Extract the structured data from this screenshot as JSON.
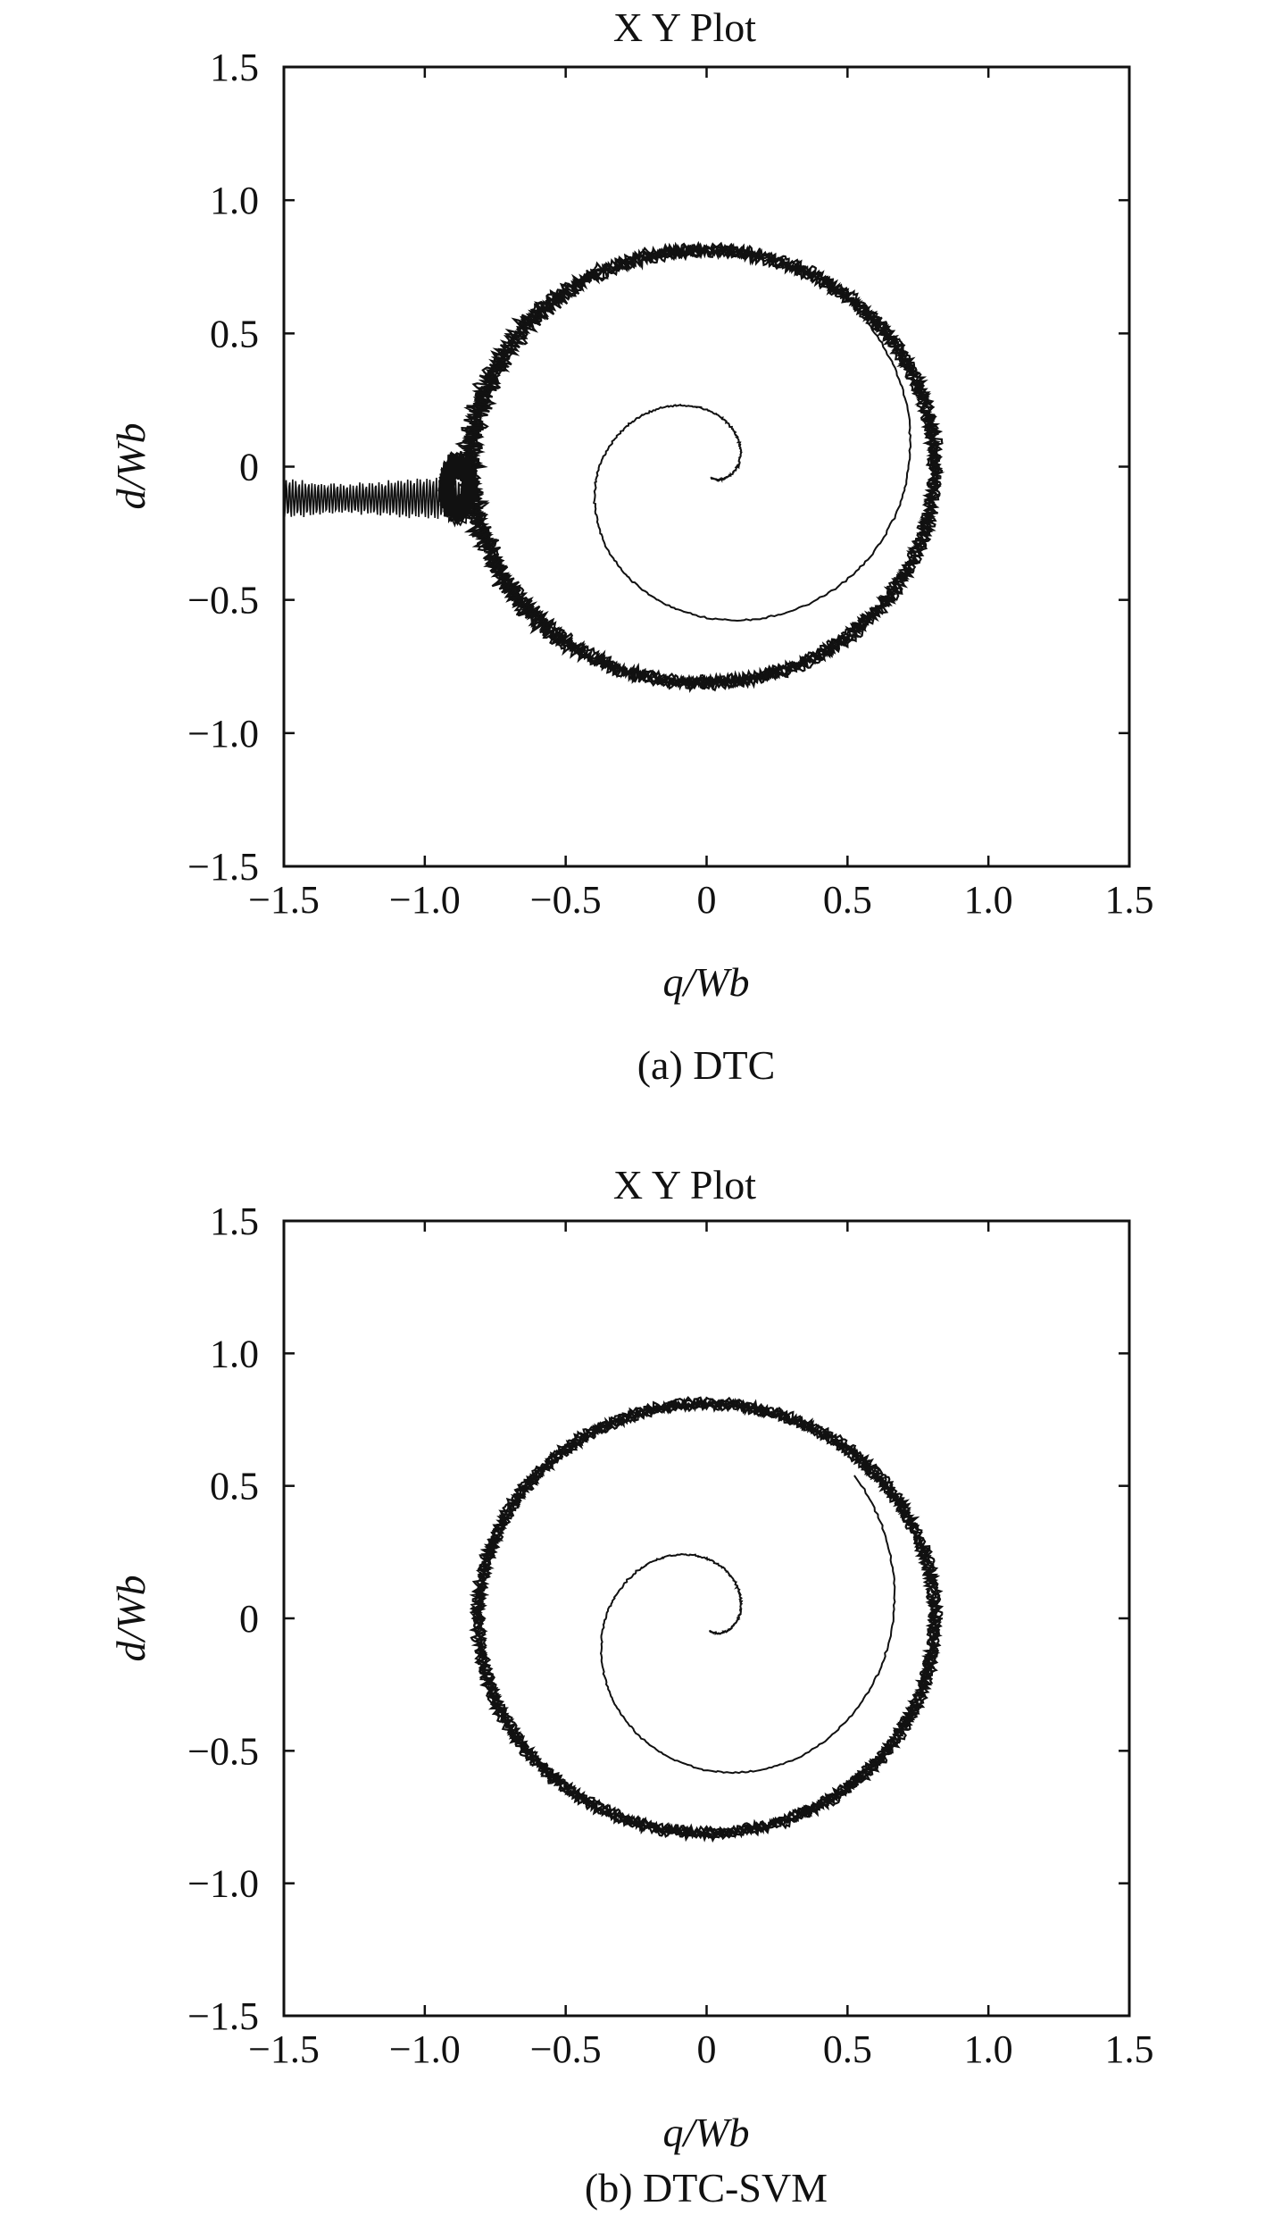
{
  "chart_data": [
    {
      "type": "scatter",
      "title": "X Y Plot",
      "xlabel": "q/Wb",
      "ylabel": "d/Wb",
      "caption": "(a) DTC",
      "xlim": [
        -1.5,
        1.5
      ],
      "ylim": [
        -1.5,
        1.5
      ],
      "xticks": [
        "−1.5",
        "−1.0",
        "−0.5",
        "0",
        "0.5",
        "1.0",
        "1.5"
      ],
      "yticks": [
        "1.5",
        "1.0",
        "0.5",
        "0",
        "−0.5",
        "−1.0",
        "−1.5"
      ],
      "grid": false,
      "line_color": "#111111",
      "series": [
        {
          "values": [
            {
              "x": 0.0,
              "y": 0.02
            },
            {
              "x": 0.02,
              "y": 0.07
            },
            {
              "x": -0.05,
              "y": 0.08
            },
            {
              "x": -0.12,
              "y": 0.05
            },
            {
              "x": -0.2,
              "y": -0.02
            },
            {
              "x": -0.28,
              "y": -0.15
            },
            {
              "x": -0.35,
              "y": -0.3
            },
            {
              "x": -0.38,
              "y": -0.45
            },
            {
              "x": -0.33,
              "y": -0.6
            },
            {
              "x": -0.22,
              "y": -0.72
            },
            {
              "x": -0.08,
              "y": -0.8
            },
            {
              "x": 0.05,
              "y": -0.8
            },
            {
              "x": 0.82,
              "y": 0.0
            },
            {
              "x": 0.0,
              "y": 0.82
            },
            {
              "x": -0.82,
              "y": 0.0
            },
            {
              "x": -0.95,
              "y": -0.1
            },
            {
              "x": -1.2,
              "y": -0.12
            },
            {
              "x": -1.5,
              "y": -0.15
            }
          ]
        }
      ]
    },
    {
      "type": "scatter",
      "title": "X Y Plot",
      "xlabel": "q/Wb",
      "ylabel": "d/Wb",
      "caption": "(b) DTC-SVM",
      "xlim": [
        -1.5,
        1.5
      ],
      "ylim": [
        -1.5,
        1.5
      ],
      "xticks": [
        "−1.5",
        "−1.0",
        "−0.5",
        "0",
        "0.5",
        "1.0",
        "1.5"
      ],
      "yticks": [
        "1.5",
        "1.0",
        "0.5",
        "0",
        "−0.5",
        "−1.0",
        "−1.5"
      ],
      "grid": false,
      "line_color": "#111111",
      "series": [
        {
          "values": [
            {
              "x": 0.02,
              "y": 0.02
            },
            {
              "x": 0.0,
              "y": 0.07
            },
            {
              "x": -0.08,
              "y": 0.07
            },
            {
              "x": -0.16,
              "y": 0.02
            },
            {
              "x": -0.25,
              "y": -0.1
            },
            {
              "x": -0.33,
              "y": -0.28
            },
            {
              "x": -0.34,
              "y": -0.45
            },
            {
              "x": -0.28,
              "y": -0.6
            },
            {
              "x": -0.15,
              "y": -0.72
            },
            {
              "x": 0.0,
              "y": -0.8
            },
            {
              "x": 0.82,
              "y": 0.0
            },
            {
              "x": 0.0,
              "y": 0.82
            },
            {
              "x": -0.83,
              "y": 0.0
            }
          ]
        }
      ]
    }
  ]
}
